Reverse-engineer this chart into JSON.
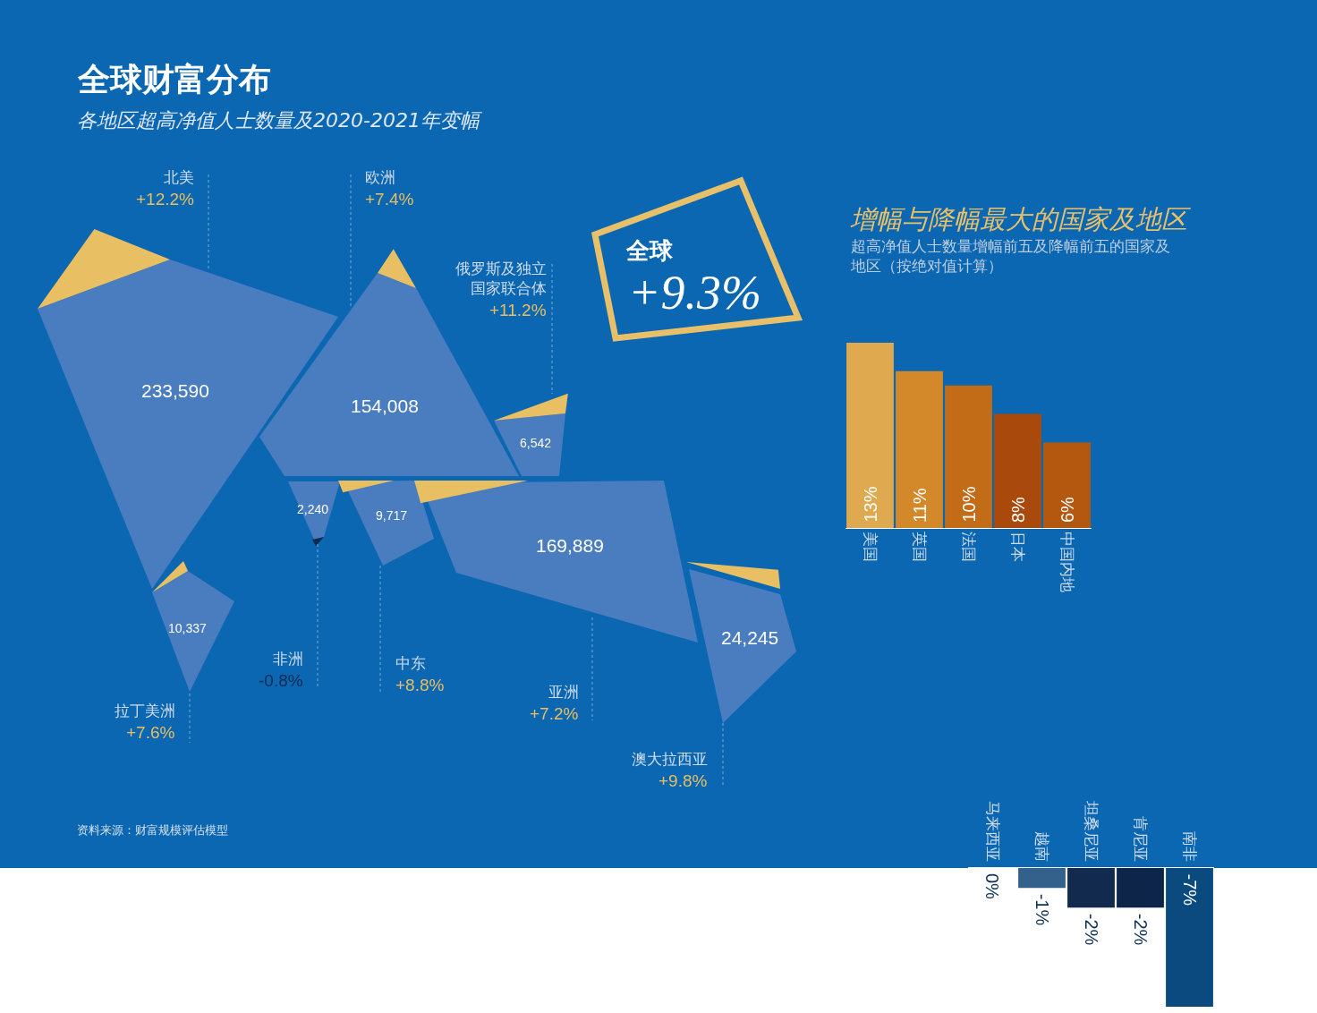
{
  "chart_data": [
    {
      "type": "other",
      "title": "全球财富分布",
      "subtitle": "各地区超高净值人士数量及2020-2021年变幅",
      "categories": [
        "北美",
        "欧洲",
        "俄罗斯及独立国家联合体",
        "拉丁美洲",
        "非洲",
        "中东",
        "亚洲",
        "澳大拉西亚"
      ],
      "series": [
        {
          "color": "#4a7dc0",
          "values": [
            233590,
            154008,
            6542,
            10337,
            2240,
            9717,
            169889,
            24245
          ],
          "value_labels": [
            "233,590",
            "154,008",
            "6,542",
            "10,337",
            "2,240",
            "9,717",
            "169,889",
            "24,245"
          ]
        },
        {
          "colors": [
            "#e8bf62",
            "#e8bf62",
            "#e8bf62",
            "#e8bf62",
            "#0d2a52",
            "#e8bf62",
            "#e8bf62",
            "#e8bf62"
          ],
          "values": [
            12.2,
            7.4,
            11.2,
            7.6,
            -0.8,
            8.8,
            7.2,
            9.8
          ],
          "value_labels": [
            "+12.2%",
            "+7.4%",
            "+11.2%",
            "+7.6%",
            "-0.8%",
            "+8.8%",
            "+7.2%",
            "+9.8%"
          ]
        }
      ],
      "annotations": [
        "全球",
        "+9.3%",
        "资料来源：财富规模评估模型"
      ]
    },
    {
      "type": "bar",
      "title": "增幅与降幅最大的国家及地区",
      "subtitle": "超高净值人士数量增幅前五及降幅前五的国家及地区（按绝对值计算）",
      "categories": [
        "美国",
        "英国",
        "法国",
        "日本",
        "中国内地"
      ],
      "values": [
        13,
        11,
        10,
        8,
        6
      ],
      "colors": [
        "#dfaa4f",
        "#d3892a",
        "#c36c17",
        "#a9490c",
        "#b5580f"
      ],
      "value_labels": [
        "13%",
        "11%",
        "10%",
        "8%",
        "6%"
      ],
      "ylim": [
        0,
        13
      ],
      "tick_labels": "x"
    },
    {
      "type": "bar",
      "categories": [
        "马来西亚",
        "越南",
        "坦桑尼亚",
        "肯尼亚",
        "南非"
      ],
      "values": [
        0,
        -1,
        -2,
        -2,
        -7
      ],
      "colors": [
        "#6b91b5",
        "#34618c",
        "#112a4d",
        "#0d2548",
        "#0b4a7f"
      ],
      "value_labels": [
        "0%",
        "-1%",
        "-2%",
        "-2%",
        "-7%"
      ],
      "ylim": [
        -7,
        0
      ],
      "tick_labels": "x"
    }
  ]
}
